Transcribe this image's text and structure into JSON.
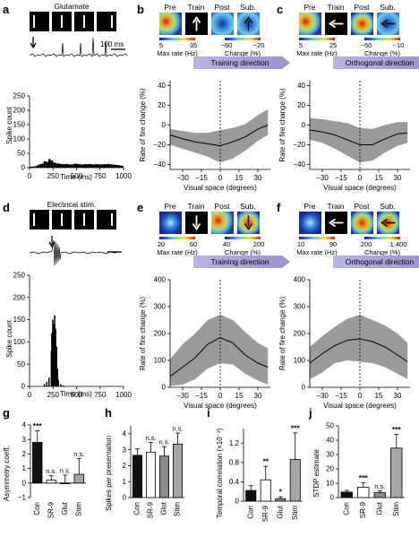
{
  "panels": {
    "a": {
      "label": "a",
      "title": "Glutamate",
      "scalebar": "100 ms",
      "ylabel": "Spike count",
      "xlabel": "Time (ms)"
    },
    "b": {
      "label": "b",
      "ylabel": "Rate of fire change (%)",
      "xlabel": "Visual space (degrees)",
      "direction": "Training direction",
      "img_labels": [
        "Pre",
        "Train",
        "Post",
        "Sub."
      ],
      "cb_left": {
        "min": "5",
        "max": "35",
        "title": "Max rate (Hz)"
      },
      "cb_right": {
        "min": "−60",
        "max": "−20",
        "title": "Change (%)"
      }
    },
    "c": {
      "label": "c",
      "ylabel": "Rate of fire change (%)",
      "xlabel": "Visual space (degrees)",
      "direction": "Orthogonal direction",
      "img_labels": [
        "Pre",
        "Train",
        "Post",
        "Sub."
      ],
      "cb_left": {
        "min": "5",
        "max": "25",
        "title": "Max rate (Hz)"
      },
      "cb_right": {
        "min": "−50",
        "max": "−10",
        "title": "Change (%)"
      }
    },
    "d": {
      "label": "d",
      "title": "Electrical stim.",
      "ylabel": "Spike count",
      "xlabel": "Time (ms)"
    },
    "e": {
      "label": "e",
      "ylabel": "Rate of fire change (%)",
      "xlabel": "Visual space (degrees)",
      "direction": "Training direction",
      "img_labels": [
        "Pre",
        "Train",
        "Post",
        "Sub."
      ],
      "cb_left": {
        "min": "20",
        "max": "60",
        "title": "Max rate (Hz)"
      },
      "cb_right": {
        "min": "40",
        "max": "200",
        "title": "Change (%)"
      }
    },
    "f": {
      "label": "f",
      "ylabel": "Rate of fire change (%)",
      "xlabel": "Visual space (degrees)",
      "direction": "Orthogonal direction",
      "img_labels": [
        "Pre",
        "Train",
        "Post",
        "Sub."
      ],
      "cb_left": {
        "min": "10",
        "max": "90",
        "title": "Max rate (Hz)"
      },
      "cb_right": {
        "min": "200",
        "max": "1,400",
        "title": "Change (%)"
      }
    },
    "g": {
      "label": "g",
      "ylabel": "Asymmetry coeff."
    },
    "h": {
      "label": "h",
      "ylabel": "Spikes per presentation"
    },
    "i": {
      "label": "i",
      "ylabel": "Temporal correlation (×10⁻³)"
    },
    "j": {
      "label": "j",
      "ylabel": "STDP estimate"
    }
  },
  "chart_data": [
    {
      "id": "a",
      "type": "bar",
      "x_ticks": [
        0,
        250,
        500,
        750,
        1000
      ],
      "y_ticks": [
        0,
        50,
        100,
        150,
        200,
        250
      ],
      "xlim": [
        0,
        1000
      ],
      "ylim": [
        0,
        250
      ],
      "x": [
        0,
        25,
        50,
        75,
        100,
        125,
        150,
        175,
        200,
        225,
        250,
        275,
        300,
        325,
        350,
        375,
        400,
        425,
        450,
        475,
        500,
        525,
        550,
        575,
        600,
        625,
        650,
        675,
        700,
        725,
        750,
        775,
        800,
        825,
        850,
        875,
        900,
        925,
        950,
        975
      ],
      "values": [
        3,
        4,
        5,
        8,
        12,
        14,
        22,
        20,
        30,
        25,
        18,
        15,
        14,
        13,
        12,
        13,
        12,
        11,
        12,
        14,
        13,
        12,
        11,
        12,
        12,
        13,
        12,
        11,
        12,
        12,
        11,
        12,
        12,
        13,
        12,
        11,
        10,
        9,
        8,
        6
      ]
    },
    {
      "id": "b",
      "type": "area",
      "x_ticks": [
        -30,
        -15,
        0,
        15,
        30
      ],
      "y_ticks": [
        -40,
        -20,
        0,
        20,
        40
      ],
      "xlim": [
        -40,
        40
      ],
      "ylim": [
        -45,
        45
      ],
      "x": [
        -40,
        -30,
        -20,
        -10,
        0,
        10,
        20,
        30,
        38
      ],
      "mean": [
        -10,
        -14,
        -17,
        -19,
        -21,
        -17,
        -12,
        -4,
        0
      ],
      "upper": [
        -4,
        -6,
        -8,
        -8,
        -5,
        -3,
        1,
        10,
        16
      ],
      "lower": [
        -20,
        -24,
        -28,
        -32,
        -38,
        -34,
        -26,
        -16,
        -10
      ]
    },
    {
      "id": "c",
      "type": "area",
      "x_ticks": [
        -30,
        -15,
        0,
        15,
        30
      ],
      "y_ticks": [
        -40,
        -20,
        0,
        20,
        40
      ],
      "xlim": [
        -40,
        40
      ],
      "ylim": [
        -45,
        45
      ],
      "x": [
        -40,
        -30,
        -20,
        -10,
        0,
        10,
        20,
        30,
        38
      ],
      "mean": [
        -5,
        -7,
        -10,
        -15,
        -20,
        -20,
        -14,
        -9,
        -8
      ],
      "upper": [
        7,
        6,
        4,
        2,
        -3,
        -4,
        0,
        3,
        3
      ],
      "lower": [
        -15,
        -18,
        -24,
        -31,
        -38,
        -36,
        -28,
        -21,
        -18
      ]
    },
    {
      "id": "d",
      "type": "bar",
      "x_ticks": [
        0,
        250,
        500,
        750,
        1000
      ],
      "y_ticks": [
        0,
        50,
        100,
        150,
        200,
        250
      ],
      "xlim": [
        0,
        1000
      ],
      "ylim": [
        0,
        250
      ],
      "x": [
        150,
        175,
        200,
        225,
        230,
        240,
        250,
        260,
        270,
        280,
        290,
        300,
        325,
        350
      ],
      "values": [
        5,
        10,
        20,
        80,
        120,
        150,
        140,
        160,
        130,
        90,
        40,
        15,
        5,
        2
      ]
    },
    {
      "id": "e",
      "type": "area",
      "x_ticks": [
        -30,
        -15,
        0,
        15,
        30
      ],
      "y_ticks": [
        0,
        100,
        200,
        300,
        400
      ],
      "xlim": [
        -40,
        40
      ],
      "ylim": [
        0,
        400
      ],
      "x": [
        -40,
        -30,
        -20,
        -10,
        0,
        10,
        20,
        30,
        38
      ],
      "mean": [
        40,
        75,
        110,
        160,
        185,
        165,
        120,
        90,
        75
      ],
      "upper": [
        105,
        160,
        200,
        250,
        270,
        250,
        205,
        165,
        145
      ],
      "lower": [
        5,
        10,
        30,
        70,
        90,
        85,
        50,
        25,
        10
      ]
    },
    {
      "id": "f",
      "type": "area",
      "x_ticks": [
        -30,
        -15,
        0,
        15,
        30
      ],
      "y_ticks": [
        0,
        100,
        200,
        300,
        400
      ],
      "xlim": [
        -40,
        40
      ],
      "ylim": [
        0,
        400
      ],
      "x": [
        -40,
        -30,
        -20,
        -10,
        0,
        10,
        20,
        30,
        38
      ],
      "mean": [
        90,
        125,
        155,
        175,
        180,
        170,
        150,
        120,
        95
      ],
      "upper": [
        150,
        190,
        225,
        255,
        270,
        250,
        230,
        200,
        165
      ],
      "lower": [
        30,
        55,
        90,
        100,
        95,
        90,
        75,
        50,
        30
      ]
    },
    {
      "id": "g",
      "type": "bar",
      "categories": [
        "Con",
        "SR-9",
        "Glut",
        "Stim"
      ],
      "values": [
        2.8,
        0.2,
        -0.05,
        0.6
      ],
      "errors": [
        0.8,
        0.3,
        0.6,
        1.1
      ],
      "colors": [
        "#111111",
        "#ffffff",
        "#8c8c8c",
        "#a6a6a6"
      ],
      "significance": [
        "***",
        "n.s.",
        "n.s.",
        "n.s."
      ],
      "y_ticks": [
        -1,
        0,
        1,
        2,
        3,
        4
      ],
      "ylim": [
        -1,
        4
      ]
    },
    {
      "id": "h",
      "type": "bar",
      "categories": [
        "Con",
        "SR-9",
        "Glut",
        "Stim"
      ],
      "values": [
        2.65,
        2.85,
        2.6,
        3.35
      ],
      "errors": [
        0.4,
        0.6,
        0.6,
        0.7
      ],
      "colors": [
        "#111111",
        "#ffffff",
        "#8c8c8c",
        "#a6a6a6"
      ],
      "significance": [
        "",
        "n.s.",
        "n.s.",
        "n.s."
      ],
      "y_ticks": [
        0,
        1,
        2,
        3,
        4
      ],
      "ylim": [
        0,
        4.5
      ]
    },
    {
      "id": "i",
      "type": "bar",
      "categories": [
        "Con",
        "SR-9",
        "Glut",
        "Stim"
      ],
      "values": [
        0.22,
        0.44,
        0.05,
        0.86
      ],
      "errors": [
        0.1,
        0.28,
        0.04,
        0.55
      ],
      "colors": [
        "#111111",
        "#ffffff",
        "#8c8c8c",
        "#a6a6a6"
      ],
      "significance": [
        "",
        "**",
        "*",
        "***"
      ],
      "y_ticks": [
        0,
        0.4,
        0.8,
        1.2
      ],
      "ylim": [
        0,
        1.5
      ]
    },
    {
      "id": "j",
      "type": "bar",
      "categories": [
        "Con",
        "SR-9",
        "Glut",
        "Stim"
      ],
      "values": [
        3.8,
        7.2,
        3.4,
        34.5
      ],
      "errors": [
        1.2,
        3.2,
        1.2,
        9.5
      ],
      "colors": [
        "#111111",
        "#ffffff",
        "#8c8c8c",
        "#a6a6a6"
      ],
      "significance": [
        "",
        "***",
        "n.s.",
        "***"
      ],
      "y_ticks": [
        0,
        10,
        20,
        30,
        40,
        50
      ],
      "ylim": [
        0,
        50
      ]
    }
  ]
}
